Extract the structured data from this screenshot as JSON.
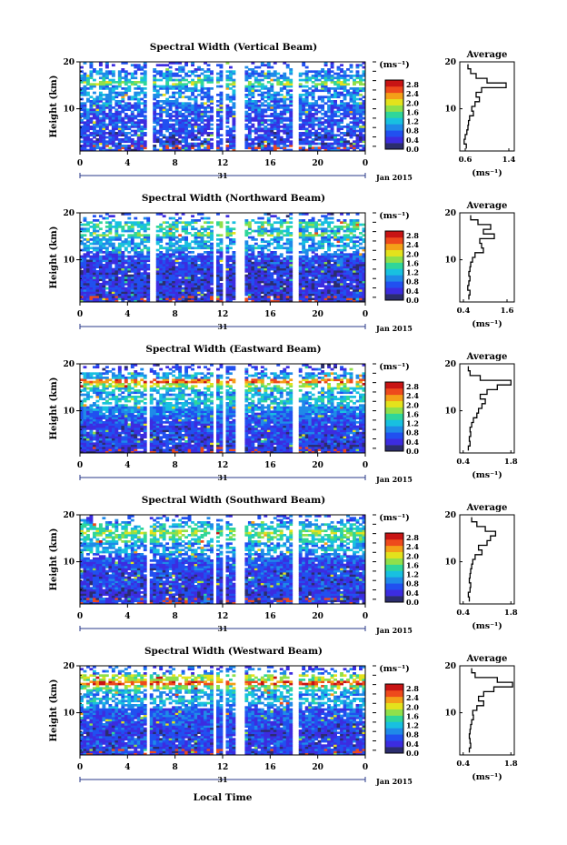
{
  "figure": {
    "date_label": "Jan 2015",
    "day_label": "31",
    "xlabel": "Local Time",
    "ylabel": "Height (km)",
    "unit_label": "(ms⁻¹)",
    "avg_title": "Average"
  },
  "chart_data": [
    {
      "type": "heatmap",
      "title": "Spectral Width (Vertical Beam)",
      "xlabel": "",
      "ylabel": "Height (km)",
      "xlim": [
        0,
        24
      ],
      "ylim": [
        1,
        20
      ],
      "xticks": [
        "0",
        "4",
        "8",
        "12",
        "16",
        "20",
        "0"
      ],
      "yticks": [
        "10",
        "20"
      ],
      "colorbar": {
        "label": "(ms⁻¹)",
        "ticks": [
          "0.0",
          "0.4",
          "0.8",
          "1.2",
          "1.6",
          "2.0",
          "2.4",
          "2.8"
        ],
        "range": [
          0,
          3.0
        ]
      },
      "data_gaps_hours": [
        [
          5.5,
          6.1
        ],
        [
          11.2,
          11.6
        ],
        [
          12.0,
          12.3
        ],
        [
          13.0,
          13.8
        ],
        [
          17.8,
          18.5
        ]
      ],
      "profile": {
        "title": "Average",
        "xlabel": "(ms⁻¹)",
        "xticks": [
          "0.6",
          "1.4"
        ],
        "xlim": [
          0.5,
          1.5
        ],
        "ylim": [
          1,
          20
        ],
        "heights": [
          2,
          3,
          4,
          5,
          6,
          7,
          8,
          9,
          10,
          11,
          12,
          13,
          14,
          15,
          16,
          17,
          18,
          19
        ],
        "values": [
          0.62,
          0.58,
          0.6,
          0.63,
          0.65,
          0.66,
          0.68,
          0.75,
          0.72,
          0.78,
          0.86,
          0.8,
          0.9,
          1.35,
          1.0,
          0.8,
          0.7,
          0.65
        ]
      }
    },
    {
      "type": "heatmap",
      "title": "Spectral Width (Northward Beam)",
      "xlabel": "",
      "ylabel": "Height (km)",
      "xlim": [
        0,
        24
      ],
      "ylim": [
        1,
        20
      ],
      "xticks": [
        "0",
        "4",
        "8",
        "12",
        "16",
        "20",
        "0"
      ],
      "yticks": [
        "10",
        "20"
      ],
      "colorbar": {
        "label": "(ms⁻¹)",
        "ticks": [
          "0.0",
          "0.4",
          "0.8",
          "1.2",
          "1.6",
          "2.0",
          "2.4",
          "2.8"
        ],
        "range": [
          0,
          3.0
        ]
      },
      "data_gaps_hours": [
        [
          5.8,
          6.3
        ],
        [
          11.2,
          11.6
        ],
        [
          12.0,
          12.3
        ],
        [
          13.0,
          13.8
        ],
        [
          17.8,
          18.5
        ]
      ],
      "profile": {
        "title": "Average",
        "xlabel": "(ms⁻¹)",
        "xticks": [
          "0.4",
          "1.6"
        ],
        "xlim": [
          0.3,
          1.8
        ],
        "ylim": [
          1,
          20
        ],
        "heights": [
          2,
          3,
          4,
          5,
          6,
          7,
          8,
          9,
          10,
          11,
          12,
          13,
          14,
          15,
          16,
          17,
          18,
          19
        ],
        "values": [
          0.55,
          0.58,
          0.52,
          0.55,
          0.58,
          0.55,
          0.58,
          0.6,
          0.65,
          0.72,
          0.95,
          0.9,
          0.85,
          1.25,
          0.95,
          1.15,
          0.8,
          0.6
        ]
      }
    },
    {
      "type": "heatmap",
      "title": "Spectral Width (Eastward Beam)",
      "xlabel": "",
      "ylabel": "Height (km)",
      "xlim": [
        0,
        24
      ],
      "ylim": [
        1,
        20
      ],
      "xticks": [
        "0",
        "4",
        "8",
        "12",
        "16",
        "20",
        "0"
      ],
      "yticks": [
        "10",
        "20"
      ],
      "colorbar": {
        "label": "(ms⁻¹)",
        "ticks": [
          "0.0",
          "0.4",
          "0.8",
          "1.2",
          "1.6",
          "2.0",
          "2.4",
          "2.8"
        ],
        "range": [
          0,
          3.0
        ]
      },
      "data_gaps_hours": [
        [
          5.5,
          6.0
        ],
        [
          11.2,
          11.6
        ],
        [
          12.0,
          12.3
        ],
        [
          13.0,
          13.8
        ],
        [
          17.8,
          18.5
        ]
      ],
      "profile": {
        "title": "Average",
        "xlabel": "(ms⁻¹)",
        "xticks": [
          "0.4",
          "1.8"
        ],
        "xlim": [
          0.3,
          1.9
        ],
        "ylim": [
          1,
          20
        ],
        "heights": [
          2,
          3,
          4,
          5,
          6,
          7,
          8,
          9,
          10,
          11,
          12,
          13,
          14,
          15,
          16,
          17,
          18,
          19
        ],
        "values": [
          0.55,
          0.6,
          0.58,
          0.62,
          0.6,
          0.65,
          0.7,
          0.8,
          0.85,
          0.95,
          1.05,
          0.9,
          1.1,
          1.4,
          1.8,
          0.9,
          0.6,
          0.55
        ]
      }
    },
    {
      "type": "heatmap",
      "title": "Spectral Width (Southward Beam)",
      "xlabel": "",
      "ylabel": "Height (km)",
      "xlim": [
        0,
        24
      ],
      "ylim": [
        1,
        20
      ],
      "xticks": [
        "0",
        "4",
        "8",
        "12",
        "16",
        "20",
        "0"
      ],
      "yticks": [
        "10",
        "20"
      ],
      "colorbar": {
        "label": "(ms⁻¹)",
        "ticks": [
          "0.0",
          "0.4",
          "0.8",
          "1.2",
          "1.6",
          "2.0",
          "2.4",
          "2.8"
        ],
        "range": [
          0,
          3.0
        ]
      },
      "data_gaps_hours": [
        [
          5.5,
          6.0
        ],
        [
          11.2,
          11.6
        ],
        [
          12.0,
          12.3
        ],
        [
          13.0,
          13.8
        ],
        [
          17.8,
          18.5
        ]
      ],
      "profile": {
        "title": "Average",
        "xlabel": "(ms⁻¹)",
        "xticks": [
          "0.4",
          "1.8"
        ],
        "xlim": [
          0.3,
          1.9
        ],
        "ylim": [
          1,
          20
        ],
        "heights": [
          2,
          3,
          4,
          5,
          6,
          7,
          8,
          9,
          10,
          11,
          12,
          13,
          14,
          15,
          16,
          17,
          18,
          19
        ],
        "values": [
          0.58,
          0.55,
          0.6,
          0.62,
          0.58,
          0.6,
          0.62,
          0.65,
          0.68,
          0.75,
          0.95,
          0.85,
          1.1,
          1.2,
          1.35,
          1.05,
          0.8,
          0.65
        ]
      }
    },
    {
      "type": "heatmap",
      "title": "Spectral Width (Westward Beam)",
      "xlabel": "Local Time",
      "ylabel": "Height (km)",
      "xlim": [
        0,
        24
      ],
      "ylim": [
        1,
        20
      ],
      "xticks": [
        "0",
        "4",
        "8",
        "12",
        "16",
        "20",
        "0"
      ],
      "yticks": [
        "10",
        "20"
      ],
      "colorbar": {
        "label": "(ms⁻¹)",
        "ticks": [
          "0.0",
          "0.4",
          "0.8",
          "1.2",
          "1.6",
          "2.0",
          "2.4",
          "2.8"
        ],
        "range": [
          0,
          3.0
        ]
      },
      "data_gaps_hours": [
        [
          5.5,
          6.0
        ],
        [
          11.2,
          11.6
        ],
        [
          12.0,
          12.3
        ],
        [
          13.0,
          13.8
        ],
        [
          17.8,
          18.5
        ]
      ],
      "profile": {
        "title": "Average",
        "xlabel": "(ms⁻¹)",
        "xticks": [
          "0.4",
          "1.8"
        ],
        "xlim": [
          0.3,
          1.9
        ],
        "ylim": [
          1,
          20
        ],
        "heights": [
          2,
          3,
          4,
          5,
          6,
          7,
          8,
          9,
          10,
          11,
          12,
          13,
          14,
          15,
          16,
          17,
          18,
          19
        ],
        "values": [
          0.58,
          0.62,
          0.6,
          0.58,
          0.6,
          0.62,
          0.65,
          0.7,
          0.68,
          0.8,
          1.0,
          0.85,
          1.0,
          1.3,
          1.85,
          1.4,
          0.75,
          0.65
        ]
      }
    }
  ]
}
